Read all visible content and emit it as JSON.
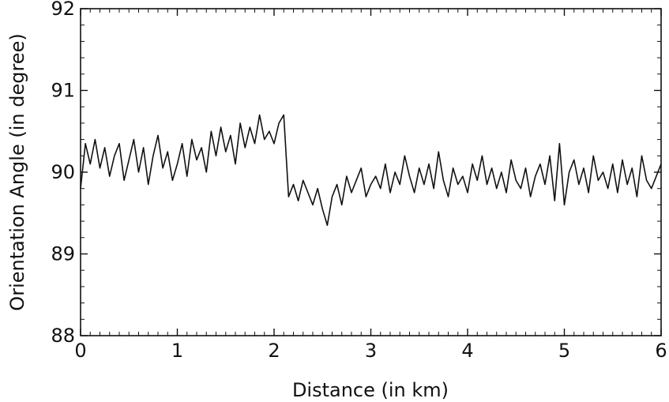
{
  "chart_data": {
    "type": "line",
    "title": "",
    "xlabel": "Distance (in km)",
    "ylabel": "Orientation Angle (in degree)",
    "xlim": [
      0,
      6
    ],
    "ylim": [
      88,
      92
    ],
    "x_ticks": [
      "0",
      "1",
      "2",
      "3",
      "4",
      "5",
      "6"
    ],
    "y_ticks": [
      "88",
      "89",
      "90",
      "91",
      "92"
    ],
    "grid": false,
    "legend": "none",
    "line_color": "#111111",
    "series": [
      {
        "x": [
          0.0,
          0.05,
          0.1,
          0.15,
          0.2,
          0.25,
          0.3,
          0.35,
          0.4,
          0.45,
          0.5,
          0.55,
          0.6,
          0.65,
          0.7,
          0.75,
          0.8,
          0.85,
          0.9,
          0.95,
          1.0,
          1.05,
          1.1,
          1.15,
          1.2,
          1.25,
          1.3,
          1.35,
          1.4,
          1.45,
          1.5,
          1.55,
          1.6,
          1.65,
          1.7,
          1.75,
          1.8,
          1.85,
          1.9,
          1.95,
          2.0,
          2.05,
          2.1,
          2.15,
          2.2,
          2.25,
          2.3,
          2.35,
          2.4,
          2.45,
          2.5,
          2.55,
          2.6,
          2.65,
          2.7,
          2.75,
          2.8,
          2.85,
          2.9,
          2.95,
          3.0,
          3.05,
          3.1,
          3.15,
          3.2,
          3.25,
          3.3,
          3.35,
          3.4,
          3.45,
          3.5,
          3.55,
          3.6,
          3.65,
          3.7,
          3.75,
          3.8,
          3.85,
          3.9,
          3.95,
          4.0,
          4.05,
          4.1,
          4.15,
          4.2,
          4.25,
          4.3,
          4.35,
          4.4,
          4.45,
          4.5,
          4.55,
          4.6,
          4.65,
          4.7,
          4.75,
          4.8,
          4.85,
          4.9,
          4.95,
          5.0,
          5.05,
          5.1,
          5.15,
          5.2,
          5.25,
          5.3,
          5.35,
          5.4,
          5.45,
          5.5,
          5.55,
          5.6,
          5.65,
          5.7,
          5.75,
          5.8,
          5.85,
          5.9,
          5.95,
          6.0
        ],
        "y": [
          89.8,
          90.35,
          90.1,
          90.4,
          90.05,
          90.3,
          89.95,
          90.2,
          90.35,
          89.9,
          90.15,
          90.4,
          90.0,
          90.3,
          89.85,
          90.2,
          90.45,
          90.05,
          90.25,
          89.9,
          90.1,
          90.35,
          89.95,
          90.4,
          90.15,
          90.3,
          90.0,
          90.5,
          90.2,
          90.55,
          90.25,
          90.45,
          90.1,
          90.6,
          90.3,
          90.55,
          90.35,
          90.7,
          90.4,
          90.5,
          90.35,
          90.6,
          90.7,
          89.7,
          89.85,
          89.65,
          89.9,
          89.75,
          89.6,
          89.8,
          89.55,
          89.35,
          89.7,
          89.85,
          89.6,
          89.95,
          89.75,
          89.9,
          90.05,
          89.7,
          89.85,
          89.95,
          89.8,
          90.1,
          89.75,
          90.0,
          89.85,
          90.2,
          89.95,
          89.75,
          90.05,
          89.85,
          90.1,
          89.8,
          90.25,
          89.9,
          89.7,
          90.05,
          89.85,
          89.95,
          89.75,
          90.1,
          89.9,
          90.2,
          89.85,
          90.05,
          89.8,
          90.0,
          89.75,
          90.15,
          89.9,
          89.8,
          90.05,
          89.7,
          89.95,
          90.1,
          89.85,
          90.2,
          89.65,
          90.35,
          89.6,
          90.0,
          90.15,
          89.85,
          90.05,
          89.75,
          90.2,
          89.9,
          90.0,
          89.8,
          90.1,
          89.75,
          90.15,
          89.85,
          90.05,
          89.7,
          90.2,
          89.9,
          89.8,
          89.95,
          90.1
        ]
      }
    ]
  }
}
